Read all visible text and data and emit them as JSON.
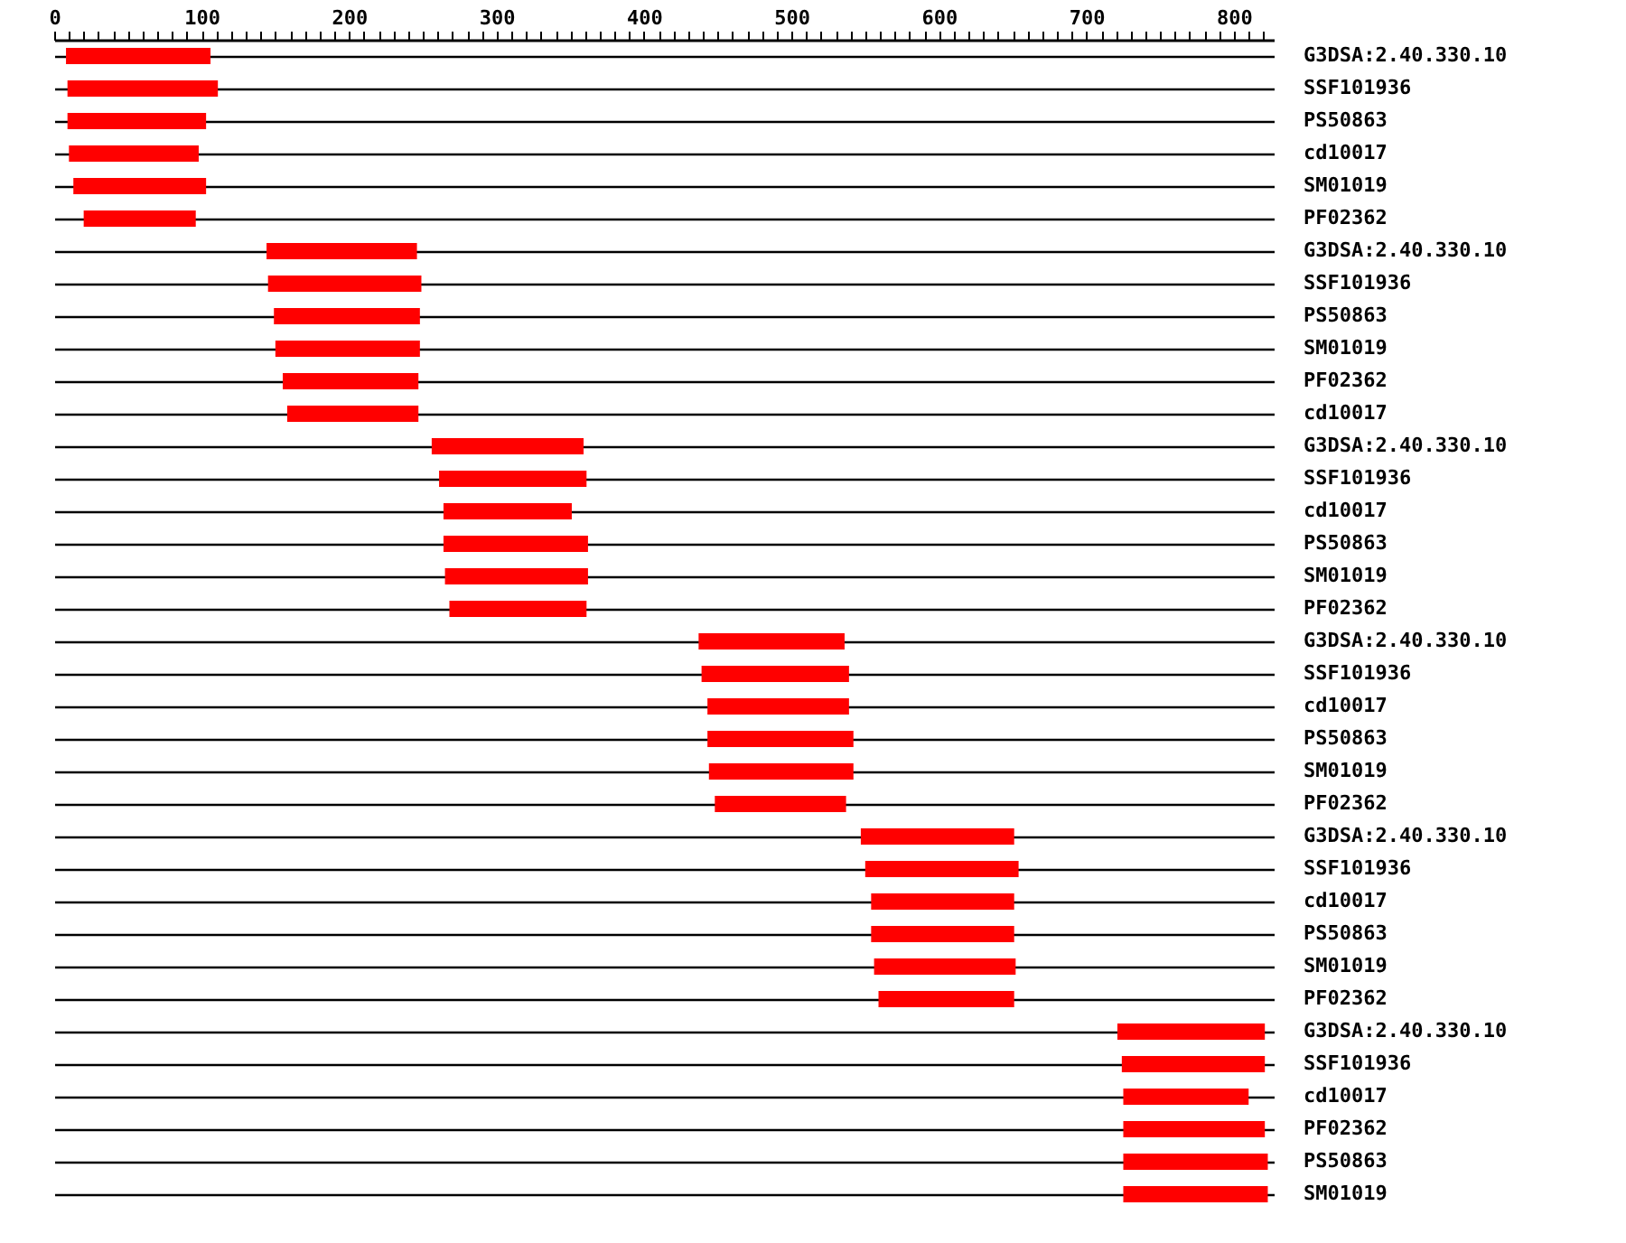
{
  "chart_data": {
    "type": "bar",
    "orientation": "horizontal",
    "color": "#ff0000",
    "grid": "y",
    "categories": [
      "G3DSA:2.40.330.10",
      "SSF101936",
      "PS50863",
      "cd10017",
      "SM01019",
      "PF02362",
      "G3DSA:2.40.330.10",
      "SSF101936",
      "PS50863",
      "SM01019",
      "PF02362",
      "cd10017",
      "G3DSA:2.40.330.10",
      "SSF101936",
      "cd10017",
      "PS50863",
      "SM01019",
      "PF02362",
      "G3DSA:2.40.330.10",
      "SSF101936",
      "cd10017",
      "PS50863",
      "SM01019",
      "PF02362",
      "G3DSA:2.40.330.10",
      "SSF101936",
      "cd10017",
      "PS50863",
      "SM01019",
      "PF02362",
      "G3DSA:2.40.330.10",
      "SSF101936",
      "cd10017",
      "PF02362",
      "PS50863",
      "SM01019"
    ],
    "base": [
      8,
      9,
      9,
      10,
      13,
      20,
      144,
      145,
      149,
      150,
      155,
      158,
      256,
      261,
      264,
      264,
      265,
      268,
      437,
      439,
      443,
      443,
      444,
      448,
      547,
      550,
      554,
      554,
      556,
      559,
      721,
      724,
      725,
      725,
      725,
      725
    ],
    "values": [
      98,
      102,
      94,
      88,
      90,
      76,
      102,
      104,
      99,
      98,
      92,
      89,
      103,
      100,
      87,
      98,
      97,
      93,
      99,
      100,
      96,
      99,
      98,
      89,
      104,
      104,
      97,
      97,
      96,
      92,
      100,
      97,
      85,
      96,
      98,
      98
    ],
    "xlim": [
      0,
      827
    ],
    "xticks": [
      0,
      {
        "value": 10,
        "label": null
      },
      {
        "value": 20,
        "label": null
      },
      {
        "value": 30,
        "label": null
      },
      {
        "value": 40,
        "label": null
      },
      {
        "value": 50,
        "label": null
      },
      {
        "value": 60,
        "label": null
      },
      {
        "value": 70,
        "label": null
      },
      {
        "value": 80,
        "label": null
      },
      {
        "value": 90,
        "label": null
      },
      100,
      {
        "value": 110,
        "label": null
      },
      {
        "value": 120,
        "label": null
      },
      {
        "value": 130,
        "label": null
      },
      {
        "value": 140,
        "label": null
      },
      {
        "value": 150,
        "label": null
      },
      {
        "value": 160,
        "label": null
      },
      {
        "value": 170,
        "label": null
      },
      {
        "value": 180,
        "label": null
      },
      {
        "value": 190,
        "label": null
      },
      200,
      {
        "value": 210,
        "label": null
      },
      {
        "value": 220,
        "label": null
      },
      {
        "value": 230,
        "label": null
      },
      {
        "value": 240,
        "label": null
      },
      {
        "value": 250,
        "label": null
      },
      {
        "value": 260,
        "label": null
      },
      {
        "value": 270,
        "label": null
      },
      {
        "value": 280,
        "label": null
      },
      {
        "value": 290,
        "label": null
      },
      300,
      {
        "value": 310,
        "label": null
      },
      {
        "value": 320,
        "label": null
      },
      {
        "value": 330,
        "label": null
      },
      {
        "value": 340,
        "label": null
      },
      {
        "value": 350,
        "label": null
      },
      {
        "value": 360,
        "label": null
      },
      {
        "value": 370,
        "label": null
      },
      {
        "value": 380,
        "label": null
      },
      {
        "value": 390,
        "label": null
      },
      400,
      {
        "value": 410,
        "label": null
      },
      {
        "value": 420,
        "label": null
      },
      {
        "value": 430,
        "label": null
      },
      {
        "value": 440,
        "label": null
      },
      {
        "value": 450,
        "label": null
      },
      {
        "value": 460,
        "label": null
      },
      {
        "value": 470,
        "label": null
      },
      {
        "value": 480,
        "label": null
      },
      {
        "value": 490,
        "label": null
      },
      500,
      {
        "value": 510,
        "label": null
      },
      {
        "value": 520,
        "label": null
      },
      {
        "value": 530,
        "label": null
      },
      {
        "value": 540,
        "label": null
      },
      {
        "value": 550,
        "label": null
      },
      {
        "value": 560,
        "label": null
      },
      {
        "value": 570,
        "label": null
      },
      {
        "value": 580,
        "label": null
      },
      {
        "value": 590,
        "label": null
      },
      600,
      {
        "value": 610,
        "label": null
      },
      {
        "value": 620,
        "label": null
      },
      {
        "value": 630,
        "label": null
      },
      {
        "value": 640,
        "label": null
      },
      {
        "value": 650,
        "label": null
      },
      {
        "value": 660,
        "label": null
      },
      {
        "value": 670,
        "label": null
      },
      {
        "value": 680,
        "label": null
      },
      {
        "value": 690,
        "label": null
      },
      700,
      {
        "value": 710,
        "label": null
      },
      {
        "value": 720,
        "label": null
      },
      {
        "value": 730,
        "label": null
      },
      {
        "value": 740,
        "label": null
      },
      {
        "value": 750,
        "label": null
      },
      {
        "value": 760,
        "label": null
      },
      {
        "value": 770,
        "label": null
      },
      {
        "value": 780,
        "label": null
      },
      {
        "value": 790,
        "label": null
      },
      800,
      {
        "value": 810,
        "label": null
      },
      {
        "value": 820,
        "label": null
      }
    ]
  }
}
